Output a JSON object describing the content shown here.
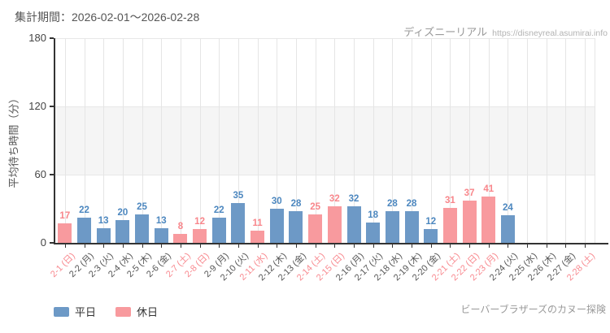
{
  "header": {
    "title": "集計期間：2026-02-01～2026-02-28",
    "brand": "ディズニーリアル",
    "brand_url": "https://disneyreal.asumirai.info"
  },
  "footer": {
    "attraction": "ビーバーブラザーズのカヌー探険"
  },
  "legend": [
    {
      "label": "平日",
      "color": "#6d99c6",
      "type": "weekday"
    },
    {
      "label": "休日",
      "color": "#f89a9e",
      "type": "holiday"
    }
  ],
  "colors": {
    "weekday_bar": "#6d99c6",
    "holiday_bar": "#f89a9e",
    "weekday_value_label": "#4c87bf",
    "holiday_value_label": "#f8868b",
    "weekday_axis_label": "#555555",
    "holiday_axis_label": "#f8898f",
    "axis_line": "#333333",
    "gridline": "#e5e5e5",
    "band": "#f5f5f5"
  },
  "chart_data": {
    "type": "bar",
    "title": "集計期間：2026-02-01～2026-02-28",
    "ylabel": "平均待ち時間（分）",
    "xlabel": "",
    "ylim": [
      0,
      180
    ],
    "yticks": [
      0,
      60,
      120,
      180
    ],
    "shaded_band": [
      60,
      120
    ],
    "legend_position": "bottom-left",
    "grid": "vertical-per-category",
    "categories": [
      "2-1 (日)",
      "2-2 (月)",
      "2-3 (火)",
      "2-4 (水)",
      "2-5 (木)",
      "2-6 (金)",
      "2-7 (土)",
      "2-8 (日)",
      "2-9 (月)",
      "2-10 (火)",
      "2-11 (水)",
      "2-12 (木)",
      "2-13 (金)",
      "2-14 (土)",
      "2-15 (日)",
      "2-16 (月)",
      "2-17 (火)",
      "2-18 (水)",
      "2-19 (木)",
      "2-20 (金)",
      "2-21 (土)",
      "2-22 (日)",
      "2-23 (月)",
      "2-24 (火)",
      "2-25 (水)",
      "2-26 (木)",
      "2-27 (金)",
      "2-28 (土)"
    ],
    "values": [
      17,
      22,
      13,
      20,
      25,
      13,
      8,
      12,
      22,
      35,
      11,
      30,
      28,
      25,
      32,
      32,
      18,
      28,
      28,
      12,
      31,
      37,
      41,
      24,
      null,
      null,
      null,
      null
    ],
    "day_types": [
      "holiday",
      "weekday",
      "weekday",
      "weekday",
      "weekday",
      "weekday",
      "holiday",
      "holiday",
      "weekday",
      "weekday",
      "holiday",
      "weekday",
      "weekday",
      "holiday",
      "holiday",
      "weekday",
      "weekday",
      "weekday",
      "weekday",
      "weekday",
      "holiday",
      "holiday",
      "holiday",
      "weekday",
      "weekday",
      "weekday",
      "weekday",
      "holiday"
    ],
    "series": [
      {
        "name": "平日",
        "color": "#6d99c6"
      },
      {
        "name": "休日",
        "color": "#f89a9e"
      }
    ]
  }
}
